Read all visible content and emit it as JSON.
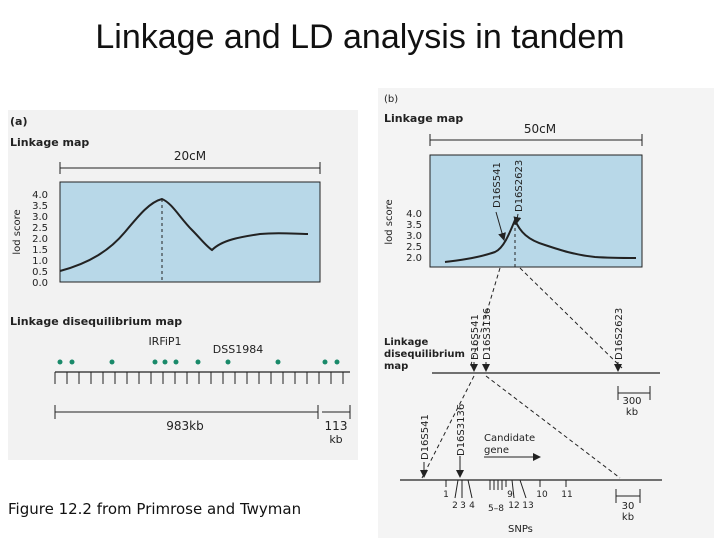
{
  "title": "Linkage and LD analysis in tandem",
  "caption": "Figure 12.2 from Primrose and Twyman",
  "panel_a": {
    "label": "(a)",
    "linkage_title": "Linkage map",
    "scale_label": "20cM",
    "y_axis_label": "lod score",
    "y_ticks": [
      "4.0",
      "3.5",
      "3.0",
      "2.5",
      "2.0",
      "1.5",
      "1.0",
      "0.5",
      "0.0"
    ],
    "ld_title": "Linkage disequilibrium map",
    "marker_1": "IRFiP1",
    "marker_2": "DSS1984",
    "bottom_scale_1": "983kb",
    "bottom_scale_2": "113",
    "bottom_scale_2_unit": "kb"
  },
  "panel_b": {
    "label": "(b)",
    "linkage_title": "Linkage map",
    "scale_label": "50cM",
    "y_axis_label": "lod score",
    "y_ticks": [
      "4.0",
      "3.5",
      "3.0",
      "2.5",
      "2.0"
    ],
    "peak_marker_1": "D16S541",
    "peak_marker_2": "D16S2623",
    "ld_marker_1": "D16S541",
    "ld_marker_2": "D16S3136",
    "ld_marker_3": "D16S2623",
    "ld_title_1": "Linkage",
    "ld_title_2": "disequilibrium",
    "ld_title_3": "map",
    "scale_300": "300",
    "scale_300_unit": "kb",
    "gene_marker_1": "D16S541",
    "gene_marker_2": "D16S3136",
    "candidate_1": "Candidate",
    "candidate_2": "gene",
    "snp_nums": [
      "1",
      "2",
      "3",
      "4",
      "5–8",
      "9",
      "12",
      "13",
      "10",
      "11"
    ],
    "scale_30": "30",
    "scale_30_unit": "kb",
    "snp_label": "SNPs"
  }
}
